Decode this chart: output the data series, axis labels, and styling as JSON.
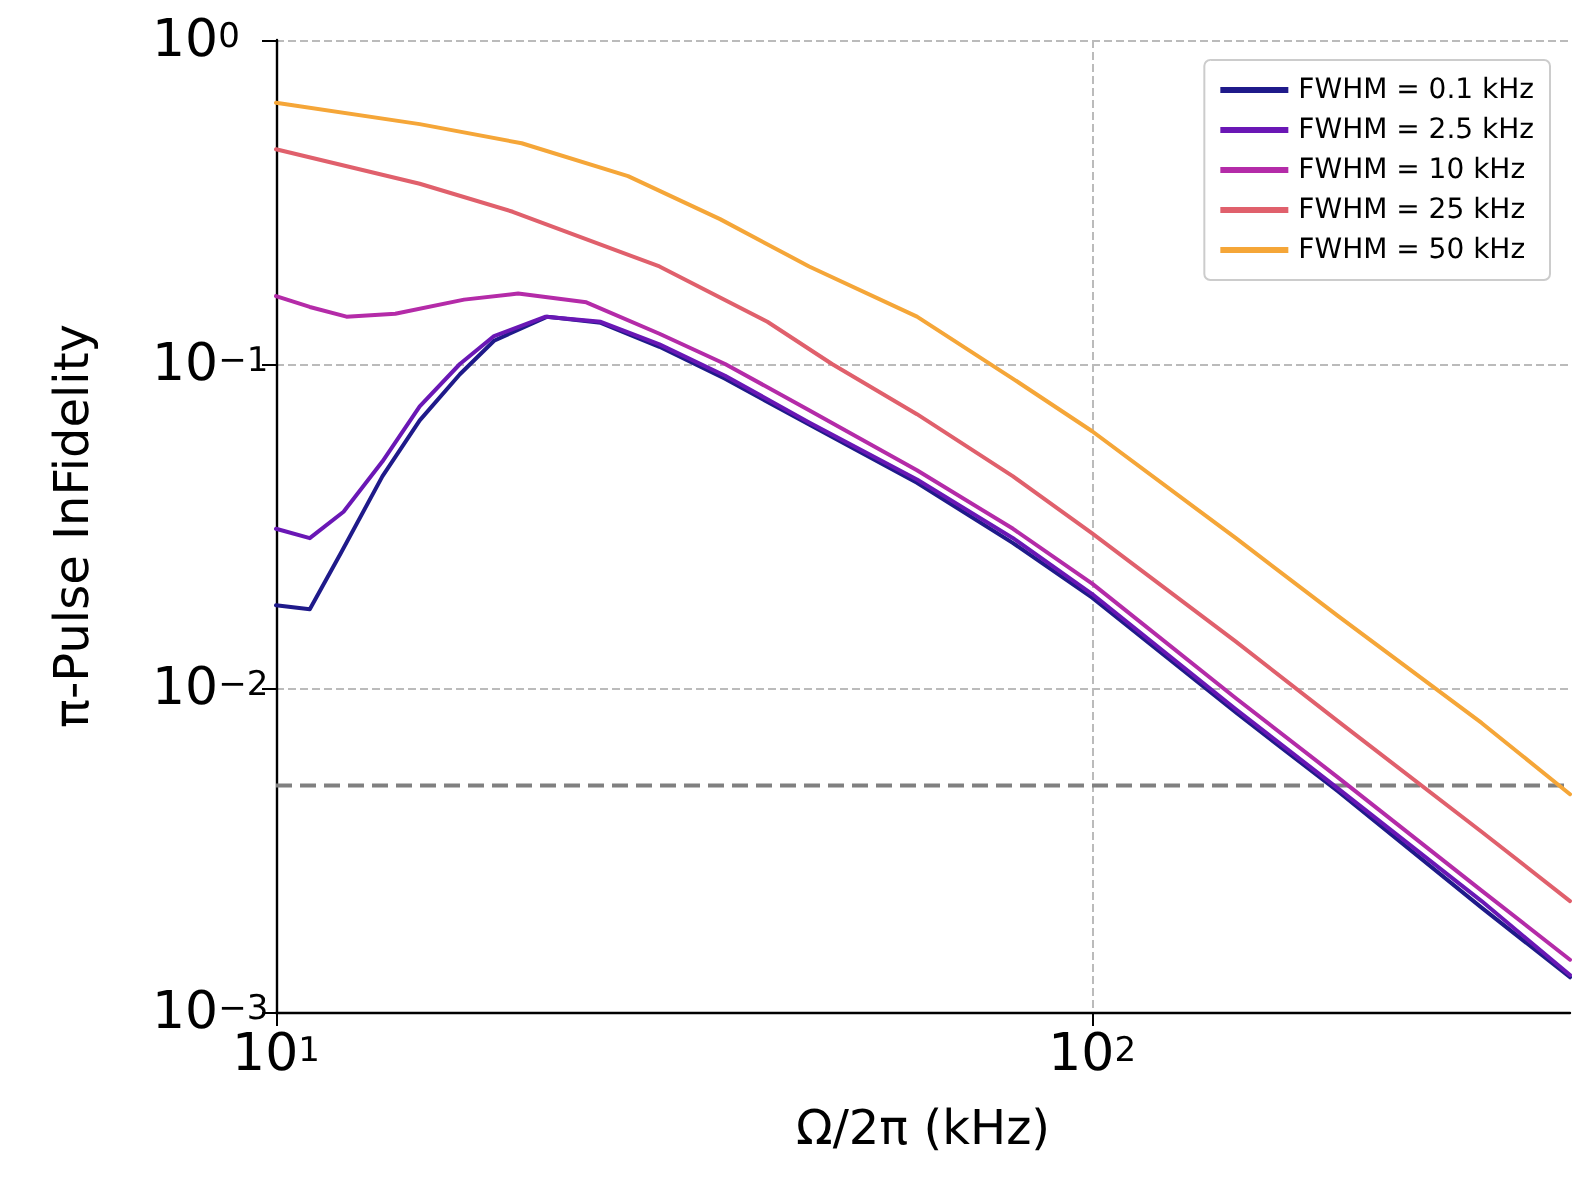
{
  "chart_data": {
    "type": "line",
    "xlabel": "Ω/2π (kHz)",
    "ylabel": "π-Pulse InFidelity",
    "log": "xy",
    "grid": true,
    "legend": "top right",
    "marker": "none",
    "line_style": "solid",
    "xlim": [
      10,
      385
    ],
    "xticks": [
      {
        "value": 10,
        "label": "10$^{1}$"
      },
      {
        "value": 100,
        "label": "10$^{2}$"
      }
    ],
    "ylim": [
      0.001,
      1
    ],
    "yticks": [
      {
        "value": 0.001,
        "label": "10$^{−3}$"
      },
      {
        "value": 0.01,
        "label": "10$^{−2}$"
      },
      {
        "value": 0.1,
        "label": "10$^{−1}$"
      },
      {
        "value": 1,
        "label": "10$^{0}$"
      }
    ],
    "ref_lines": [
      {
        "axis": "y",
        "value": 0.005,
        "color": "#808080",
        "line_style": "dashed"
      }
    ],
    "series": [
      {
        "name": "FWHM = 0.1 kHz",
        "color": "#1f1a8a",
        "x": [
          10,
          11,
          12,
          13.5,
          15,
          16.8,
          18.5,
          21.5,
          25,
          29.5,
          35.5,
          45,
          61,
          80,
          100,
          150,
          200,
          300,
          385
        ],
        "values": [
          0.018,
          0.0175,
          0.026,
          0.045,
          0.067,
          0.093,
          0.118,
          0.14,
          0.134,
          0.113,
          0.09,
          0.065,
          0.043,
          0.028,
          0.019,
          0.0084,
          0.0048,
          0.0021,
          0.00128
        ]
      },
      {
        "name": "FWHM = 2.5 kHz",
        "color": "#6a17b5",
        "x": [
          10,
          11,
          12.1,
          13.5,
          15,
          16.8,
          18.5,
          21.4,
          25,
          29.5,
          35.5,
          45,
          61,
          80,
          100,
          150,
          200,
          300,
          385
        ],
        "values": [
          0.031,
          0.029,
          0.035,
          0.05,
          0.074,
          0.1,
          0.122,
          0.14,
          0.135,
          0.115,
          0.092,
          0.066,
          0.044,
          0.029,
          0.0195,
          0.0086,
          0.0049,
          0.0022,
          0.0013
        ]
      },
      {
        "name": "FWHM = 10 kHz",
        "color": "#b42ba8",
        "x": [
          10,
          11,
          12.2,
          14,
          17,
          19.8,
          24,
          29.5,
          35.5,
          45,
          61,
          80,
          100,
          150,
          200,
          300,
          385
        ],
        "values": [
          0.162,
          0.15,
          0.14,
          0.143,
          0.158,
          0.165,
          0.155,
          0.124,
          0.1,
          0.072,
          0.047,
          0.031,
          0.021,
          0.0093,
          0.0053,
          0.00237,
          0.00145
        ]
      },
      {
        "name": "FWHM = 25 kHz",
        "color": "#e0606c",
        "x": [
          10,
          15,
          19.5,
          29.5,
          40,
          48,
          61,
          80,
          100,
          150,
          200,
          300,
          385
        ],
        "values": [
          0.46,
          0.36,
          0.295,
          0.2,
          0.135,
          0.1,
          0.07,
          0.045,
          0.03,
          0.0139,
          0.0079,
          0.0036,
          0.0022
        ]
      },
      {
        "name": "FWHM = 50 kHz",
        "color": "#f5a638",
        "x": [
          10,
          15,
          20,
          27,
          35,
          45,
          61,
          80,
          100,
          150,
          200,
          300,
          385
        ],
        "values": [
          0.64,
          0.55,
          0.48,
          0.38,
          0.28,
          0.2,
          0.14,
          0.09,
          0.062,
          0.029,
          0.0167,
          0.0078,
          0.0047
        ]
      }
    ]
  }
}
